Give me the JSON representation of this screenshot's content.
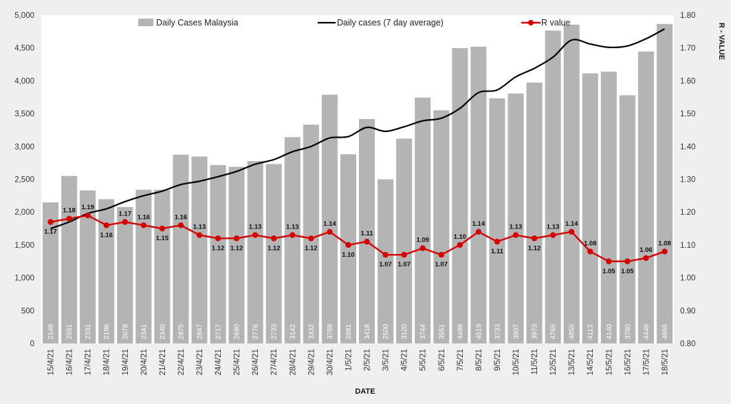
{
  "chart_data": {
    "type": "bar",
    "categories": [
      "15/4/21",
      "16/4/21",
      "17/4/21",
      "18/4/21",
      "19/4/21",
      "20/4/21",
      "21/4/21",
      "22/4/21",
      "23/4/21",
      "24/4/21",
      "25/4/21",
      "26/4/21",
      "27/4/21",
      "28/4/21",
      "29/4/21",
      "30/4/21",
      "1/5/21",
      "2/5/21",
      "3/5/21",
      "4/5/21",
      "5/5/21",
      "6/5/21",
      "7/5/21",
      "8/5/21",
      "9/5/21",
      "10/5/21",
      "11/5/21",
      "12/5/21",
      "13/5/21",
      "14/5/21",
      "15/5/21",
      "16/5/21",
      "17/5/21",
      "18/5/21"
    ],
    "series": [
      {
        "name": "Daily Cases Malaysia",
        "type": "bar",
        "axis": "left",
        "color": "#b4b4b4",
        "values": [
          2148,
          2551,
          2331,
          2196,
          2078,
          2341,
          2340,
          2875,
          2847,
          2717,
          2690,
          2776,
          2733,
          3142,
          3332,
          3788,
          2881,
          3418,
          2500,
          3120,
          3744,
          3551,
          4498,
          4519,
          3733,
          3807,
          3973,
          4765,
          4855,
          4113,
          4140,
          3780,
          4446,
          4865
        ]
      },
      {
        "name": "Daily cases (7 day average)",
        "type": "line",
        "axis": "left",
        "color": "#000000",
        "values": [
          1750,
          1850,
          1980,
          2050,
          2160,
          2250,
          2320,
          2420,
          2470,
          2540,
          2620,
          2730,
          2800,
          2920,
          3000,
          3130,
          3150,
          3290,
          3230,
          3300,
          3390,
          3430,
          3580,
          3820,
          3860,
          4060,
          4190,
          4360,
          4620,
          4560,
          4510,
          4530,
          4640,
          4790
        ]
      },
      {
        "name": "R value",
        "type": "line",
        "axis": "right",
        "color": "#d40000",
        "values": [
          1.17,
          1.18,
          1.19,
          1.16,
          1.17,
          1.16,
          1.15,
          1.16,
          1.13,
          1.12,
          1.12,
          1.13,
          1.12,
          1.13,
          1.12,
          1.14,
          1.1,
          1.11,
          1.07,
          1.07,
          1.09,
          1.07,
          1.1,
          1.14,
          1.11,
          1.13,
          1.12,
          1.13,
          1.14,
          1.08,
          1.05,
          1.05,
          1.06,
          1.08
        ],
        "labels": [
          "1.17",
          "1.18",
          "1.19",
          "1.16",
          "1.17",
          "1.16",
          "1.15",
          "1.16",
          "1.13",
          "1.12",
          "1.12",
          "1.13",
          "1.12",
          "1.13",
          "1.12",
          "1.14",
          "1.10",
          "1.11",
          "1.07",
          "1.07",
          "1.09",
          "1.07",
          "1.10",
          "1.14",
          "1.11",
          "1.13",
          "1.12",
          "1.13",
          "1.14",
          "1.08",
          "1.05",
          "1.05",
          "1.06",
          "1.08"
        ]
      }
    ],
    "bar_labels": [
      "2148",
      "2551",
      "2331",
      "2196",
      "2078",
      "2341",
      "2340",
      "2875",
      "2847",
      "2717",
      "2690",
      "2776",
      "2733",
      "3142",
      "3332",
      "3788",
      "2881",
      "3418",
      "2500",
      "3120",
      "3744",
      "3551",
      "4498",
      "4519",
      "3733",
      "3807",
      "3973",
      "4765",
      "4855",
      "4113",
      "4140",
      "3780",
      "4446",
      "4865"
    ],
    "xlabel": "DATE",
    "ylabel": "",
    "y2label": "R - VALUE",
    "ylim": [
      0,
      5000
    ],
    "y2lim": [
      0.8,
      1.8
    ],
    "yticks": [
      "0",
      "500",
      "1,000",
      "1,500",
      "2,000",
      "2,500",
      "3,000",
      "3,500",
      "4,000",
      "4,500",
      "5,000"
    ],
    "y2ticks": [
      "0.80",
      "0.90",
      "1.00",
      "1.10",
      "1.20",
      "1.30",
      "1.40",
      "1.50",
      "1.60",
      "1.70",
      "1.80"
    ],
    "grid": false,
    "legend_position": "top"
  }
}
